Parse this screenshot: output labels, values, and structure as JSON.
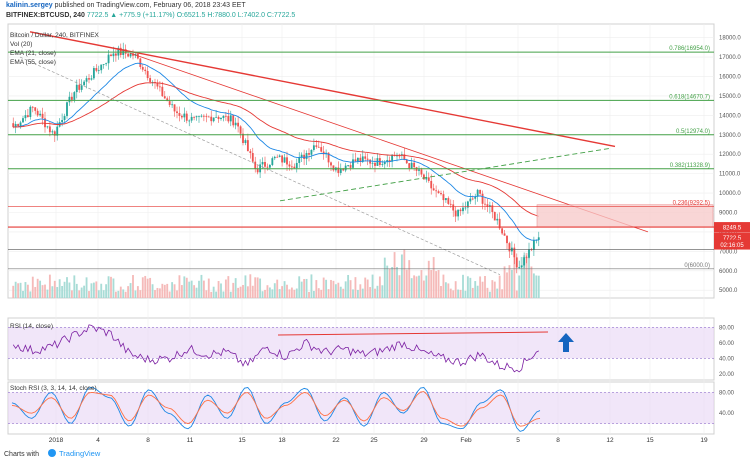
{
  "header": {
    "author": "kalinin.sergey",
    "published": "published on TradingView.com, February 06, 2018 23:43 EET",
    "symbol_line": "BITFINEX:BTCUSD, 240",
    "ohlc": "7722.5  ▲ +775.9 (+11.17%)  O:6521.5  H:7880.0  L:7402.0  C:7722.5"
  },
  "legend": {
    "title": "Bitcoin / Dollar, 240, BITFINEX",
    "vol": "Vol (20)",
    "ema21": "EMA (21, close)",
    "ema55": "EMA (55, close)"
  },
  "indicators": {
    "rsi_label": "RSI (14, close)",
    "stoch_label": "Stoch RSI (3, 3, 14, 14, close)"
  },
  "footer": {
    "charts_with": "Charts with",
    "brand": "TradingView"
  },
  "colors": {
    "up": "#26a69a",
    "down": "#ef5350",
    "trend": "#e53935",
    "fib": "#43a047",
    "rsi": "#7b1fa2",
    "band": "#e8d6f5",
    "stoch_k": "#1e88e5",
    "stoch_d": "#ff7043",
    "arrow": "#1565c0"
  },
  "chart_data": [
    {
      "type": "candlestick",
      "title": "Bitcoin / Dollar, 240, BITFINEX",
      "x_ticks": [
        "2018",
        "4",
        "8",
        "11",
        "15",
        "18",
        "22",
        "25",
        "29",
        "Feb",
        "5",
        "8",
        "12",
        "15",
        "19"
      ],
      "y_ticks": [
        18000,
        17000,
        16000,
        15000,
        14000,
        13000,
        12000,
        11000,
        10000,
        9000,
        8000,
        7000,
        6000,
        5000
      ],
      "ylim": [
        4600,
        18700
      ],
      "close_path": [
        13400,
        14400,
        13000,
        15200,
        16200,
        17300,
        17100,
        15600,
        14200,
        13700,
        14000,
        13700,
        11200,
        11800,
        11500,
        12600,
        11200,
        11700,
        11600,
        12000,
        11100,
        9900,
        8900,
        10000,
        8500,
        6200,
        7722.5
      ],
      "fib_levels": [
        {
          "label": "0.786(16954.0)",
          "value": 17250
        },
        {
          "label": "0.618(14670.7)",
          "value": 14770
        },
        {
          "label": "0.5(12974.0)",
          "value": 13000
        },
        {
          "label": "0.382(11328.9)",
          "value": 11250
        },
        {
          "label": "0.236(9292.5)",
          "value": 9300
        },
        {
          "label": "0(6000.0)",
          "value": 6100
        }
      ],
      "price_markers": [
        {
          "label": "8249.5",
          "value": 8249.5
        },
        {
          "label": "7722.5",
          "value": 7722.5
        },
        {
          "label": "02:16:05",
          "value": 7350
        }
      ]
    },
    {
      "type": "line",
      "title": "RSI (14, close)",
      "y_ticks": [
        80,
        60,
        40,
        20
      ],
      "ylim": [
        12,
        92
      ],
      "band": [
        40,
        80
      ],
      "path": [
        58,
        50,
        55,
        68,
        80,
        72,
        45,
        38,
        40,
        52,
        45,
        48,
        30,
        55,
        42,
        60,
        48,
        52,
        45,
        50,
        60,
        48,
        40,
        35,
        45,
        30,
        28,
        52
      ],
      "resistance": 70
    },
    {
      "type": "line",
      "title": "Stoch RSI (3, 3, 14, 14, close)",
      "y_ticks": [
        80,
        40
      ],
      "ylim": [
        0,
        100
      ],
      "band": [
        20,
        80
      ],
      "k_path": [
        60,
        30,
        80,
        20,
        90,
        70,
        15,
        85,
        40,
        10,
        75,
        30,
        90,
        20,
        60,
        88,
        25,
        70,
        15,
        80,
        40,
        90,
        20,
        10,
        60,
        85,
        5,
        45
      ],
      "d_path": [
        55,
        40,
        70,
        30,
        80,
        75,
        25,
        75,
        50,
        20,
        65,
        40,
        80,
        30,
        55,
        80,
        35,
        65,
        25,
        70,
        45,
        82,
        30,
        15,
        50,
        75,
        15,
        30
      ]
    }
  ]
}
